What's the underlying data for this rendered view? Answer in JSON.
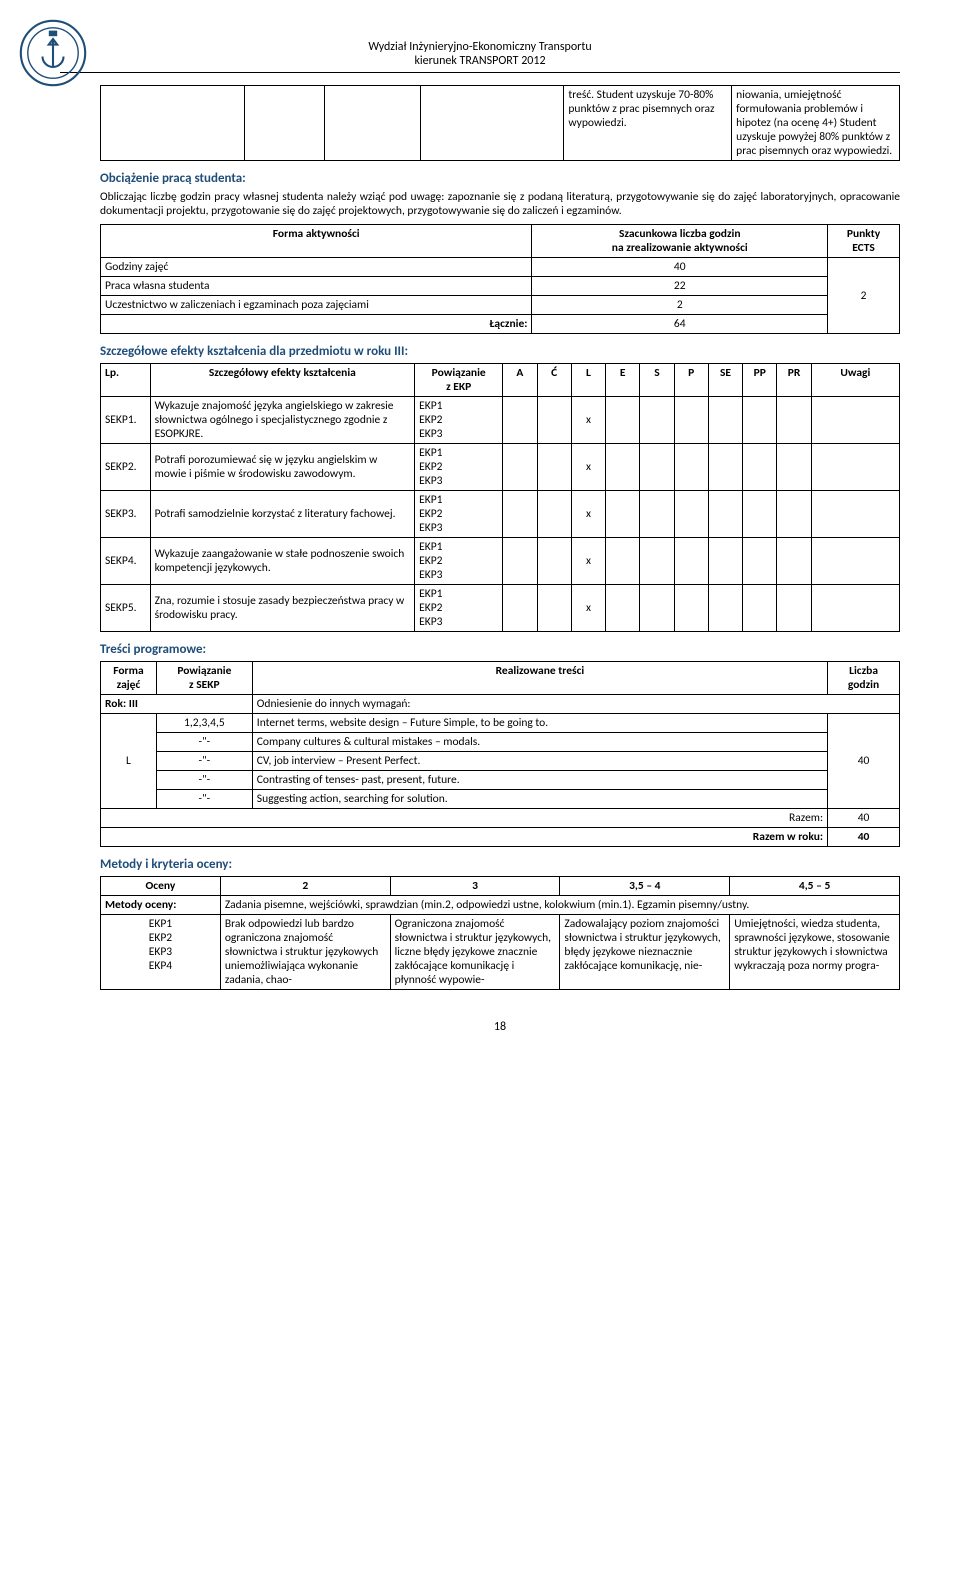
{
  "header": {
    "line1": "Wydział Inżynieryjno-Ekonomiczny Transportu",
    "line2": "kierunek TRANSPORT 2012"
  },
  "cont_table": {
    "col5": "treść. Student uzyskuje 70-80% punktów z prac pisemnych oraz wypowiedzi.",
    "col6": "niowania, umiejętność formułowania problemów i hipotez (na ocenę 4+) Student uzyskuje powyżej 80% punktów z prac pisemnych oraz wypowiedzi."
  },
  "obciazenie": {
    "title": "Obciążenie pracą studenta:",
    "paragraph": "Obliczając liczbę godzin pracy własnej studenta należy wziąć pod uwagę: zapoznanie się z podaną literaturą, przygotowywanie się do zajęć laboratoryjnych, opracowanie dokumentacji projektu, przygotowanie się do zajęć projektowych, przygotowywanie się do zaliczeń i egzaminów."
  },
  "activity": {
    "head_form": "Forma aktywności",
    "head_hours": "Szacunkowa liczba godzin\nna zrealizowanie aktywności",
    "head_ects": "Punkty\nECTS",
    "rows": [
      {
        "name": "Godziny zajęć",
        "hours": "40"
      },
      {
        "name": "Praca własna studenta",
        "hours": "22"
      },
      {
        "name": "Uczestnictwo w zaliczeniach i egzaminach poza zajęciami",
        "hours": "2"
      }
    ],
    "total_label": "Łącznie:",
    "total_hours": "64",
    "ects": "2"
  },
  "effects": {
    "title": "Szczegółowe efekty kształcenia dla przedmiotu w roku III:",
    "head": {
      "lp": "Lp.",
      "desc": "Szczegółowy efekty kształcenia",
      "ekp": "Powiązanie\nz EKP",
      "flags": [
        "A",
        "Ć",
        "L",
        "E",
        "S",
        "P",
        "SE",
        "PP",
        "PR"
      ],
      "uwagi": "Uwagi"
    },
    "rows": [
      {
        "lp": "SEKP1.",
        "desc": "Wykazuje znajomość języka angielskiego w zakresie słownictwa ogólnego i specjalistycznego zgodnie z ESOPKJRE.",
        "ekp": "EKP1\nEKP2\nEKP3",
        "mark": 2
      },
      {
        "lp": "SEKP2.",
        "desc": "Potrafi porozumiewać się w języku angielskim w mowie i piśmie w środowisku zawodowym.",
        "ekp": "EKP1\nEKP2\nEKP3",
        "mark": 2
      },
      {
        "lp": "SEKP3.",
        "desc": "Potrafi samodzielnie korzystać z literatury fachowej.",
        "ekp": "EKP1\nEKP2\nEKP3",
        "mark": 2
      },
      {
        "lp": "SEKP4.",
        "desc": "Wykazuje zaangażowanie w stałe podnoszenie swoich kompetencji językowych.",
        "ekp": "EKP1\nEKP2\nEKP3",
        "mark": 2
      },
      {
        "lp": "SEKP5.",
        "desc": "Zna, rozumie i stosuje zasady bezpieczeństwa pracy w środowisku pracy.",
        "ekp": "EKP1\nEKP2\nEKP3",
        "mark": 2
      }
    ]
  },
  "prog": {
    "title": "Treści programowe:",
    "head": {
      "forma": "Forma\nzajęć",
      "sekp": "Powiązanie\nz SEKP",
      "tresc": "Realizowane treści",
      "godz": "Liczba\ngodzin"
    },
    "rok_label": "Rok: III",
    "rok_text": "Odniesienie do innych wymagań:",
    "forma_val": "L",
    "godz_val": "40",
    "rows": [
      {
        "sekp": "1,2,3,4,5",
        "tresc": "Internet terms, website design – Future Simple, to be going to."
      },
      {
        "sekp": "-\"-",
        "tresc": "Company cultures & cultural mistakes – modals."
      },
      {
        "sekp": "-\"-",
        "tresc": "CV, job interview – Present Perfect."
      },
      {
        "sekp": "-\"-",
        "tresc": "Contrasting of tenses- past, present, future."
      },
      {
        "sekp": "-\"-",
        "tresc": "Suggesting action, searching for solution."
      }
    ],
    "razem_label": "Razem:",
    "razem_val": "40",
    "razem_rok_label": "Razem w roku:",
    "razem_rok_val": "40"
  },
  "metody": {
    "title": "Metody i kryteria oceny:",
    "head_oceny": "Oceny",
    "grades": [
      "2",
      "3",
      "3,5 – 4",
      "4,5 – 5"
    ],
    "metody_label": "Metody oceny:",
    "metody_text": "Zadania pisemne, wejściówki, sprawdzian (min.2, odpowiedzi ustne, kolokwium (min.1). Egzamin pisemny/ustny.",
    "ekp_label": "EKP1\nEKP2\nEKP3\nEKP4",
    "cells": [
      "Brak odpowiedzi lub bardzo ograniczona znajomość słownictwa i struktur językowych uniemożliwiająca wykonanie zadania, chao-",
      "Ograniczona znajomość słownictwa i struktur językowych, liczne błędy językowe znacznie zakłócające komunikację i płynność wypowie-",
      "Zadowalający poziom znajomości słownictwa i struktur językowych, błędy językowe nieznacznie zakłócające komunikację, nie-",
      "Umiejętności, wiedza studenta, sprawności językowe, stosowanie struktur językowych i słownictwa wykraczają poza normy progra-"
    ]
  },
  "page_number": "18"
}
